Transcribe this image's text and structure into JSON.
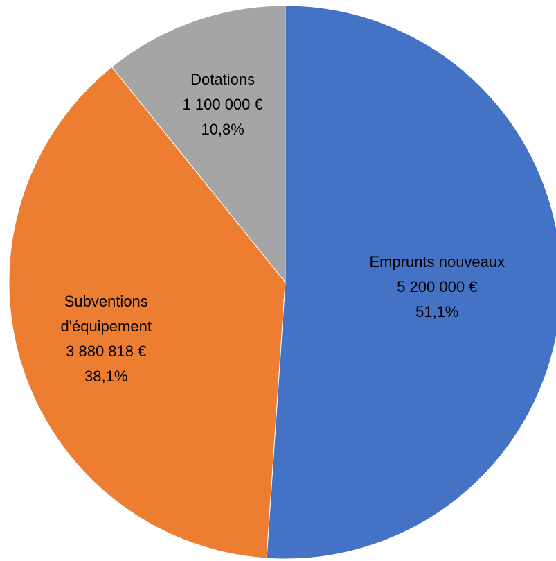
{
  "chart_data": {
    "type": "pie",
    "categories": [
      "Emprunts nouveaux",
      "Subventions d'équipement",
      "Dotations"
    ],
    "values": [
      5200000,
      3880818,
      1100000
    ],
    "value_labels": [
      "5 200 000 €",
      "3 880 818 €",
      "1 100 000 €"
    ],
    "percentages": [
      51.1,
      38.1,
      10.8
    ],
    "percentage_labels": [
      "51,1%",
      "38,1%",
      "10,8%"
    ],
    "colors": [
      "#4472c4",
      "#ed7d31",
      "#a5a5a5"
    ]
  }
}
